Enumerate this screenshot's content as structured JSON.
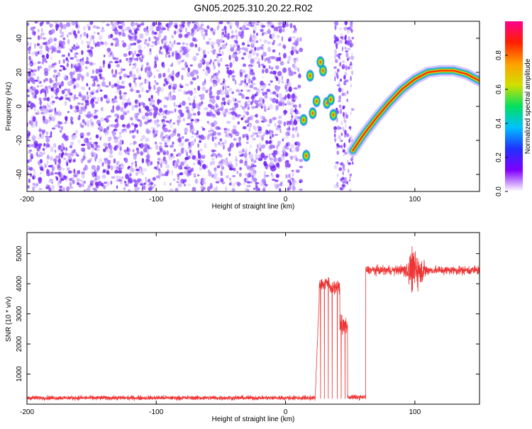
{
  "title": "GN05.2025.310.20.22.R02",
  "chart_data": [
    {
      "type": "heatmap",
      "xlabel": "Height of straight line (km)",
      "ylabel": "Frequency (Hz)",
      "xlim": [
        -200,
        150
      ],
      "ylim": [
        -50,
        50
      ],
      "xticks": [
        -200,
        -100,
        0,
        100
      ],
      "yticks": [
        -40,
        -20,
        0,
        20,
        40
      ],
      "noise_region_x": [
        -200,
        12
      ],
      "gap_regions_x": [
        [
          12,
          38
        ],
        [
          52,
          150
        ]
      ],
      "noise_strip_x": [
        38,
        52
      ],
      "blobs": [
        {
          "x": 14,
          "y": -8
        },
        {
          "x": 16,
          "y": -29
        },
        {
          "x": 19,
          "y": 18
        },
        {
          "x": 21,
          "y": -4
        },
        {
          "x": 24,
          "y": 3
        },
        {
          "x": 27,
          "y": 26
        },
        {
          "x": 29,
          "y": 21
        },
        {
          "x": 32,
          "y": 2
        },
        {
          "x": 35,
          "y": 4
        },
        {
          "x": 37,
          "y": -5
        }
      ],
      "trace": [
        {
          "x": 52,
          "y": -26
        },
        {
          "x": 60,
          "y": -17
        },
        {
          "x": 70,
          "y": -7
        },
        {
          "x": 80,
          "y": 2
        },
        {
          "x": 90,
          "y": 10
        },
        {
          "x": 100,
          "y": 16
        },
        {
          "x": 110,
          "y": 20
        },
        {
          "x": 120,
          "y": 21
        },
        {
          "x": 130,
          "y": 21
        },
        {
          "x": 140,
          "y": 19
        },
        {
          "x": 150,
          "y": 15
        }
      ],
      "colorbar": {
        "label": "Normalized spectral amplitude",
        "ticks": [
          "0.0",
          "0.2",
          "0.4",
          "0.6",
          "0.8"
        ],
        "tick_values": [
          0,
          0.2,
          0.4,
          0.6,
          0.8
        ],
        "range": [
          0,
          1
        ],
        "colors": [
          "#ffffff",
          "#8000ff",
          "#2030ff",
          "#00c0ff",
          "#00e060",
          "#d0e000",
          "#ffa000",
          "#ff2000",
          "#ff0090"
        ]
      }
    },
    {
      "type": "line",
      "xlabel": "Height of straight line (km)",
      "ylabel": "SNR (10 * v/v)",
      "xlim": [
        -200,
        150
      ],
      "ylim": [
        0,
        5700
      ],
      "xticks": [
        -200,
        -100,
        0,
        100
      ],
      "yticks": [
        1000,
        2000,
        3000,
        4000,
        5000
      ],
      "color": "#ee3333",
      "segments": [
        {
          "x": [
            -200,
            23
          ],
          "level": 210,
          "noise": 110
        },
        {
          "x": [
            23,
            26
          ],
          "rise_from": 300,
          "rise_to": 3500
        },
        {
          "x": [
            26,
            34
          ],
          "level": 4000,
          "noise": 350
        },
        {
          "x": [
            34,
            42
          ],
          "level": 3900,
          "noise": 300
        },
        {
          "x": [
            42,
            48
          ],
          "level": 2600,
          "noise": 500
        },
        {
          "x": [
            48,
            62
          ],
          "level": 230,
          "noise": 120
        },
        {
          "x": [
            62,
            150
          ],
          "level": 4450,
          "noise": 220
        }
      ],
      "spikes_down": [
        27,
        30,
        33,
        36,
        40,
        43,
        46
      ],
      "burst": {
        "x": [
          88,
          112
        ],
        "amplitude": 800
      }
    }
  ]
}
